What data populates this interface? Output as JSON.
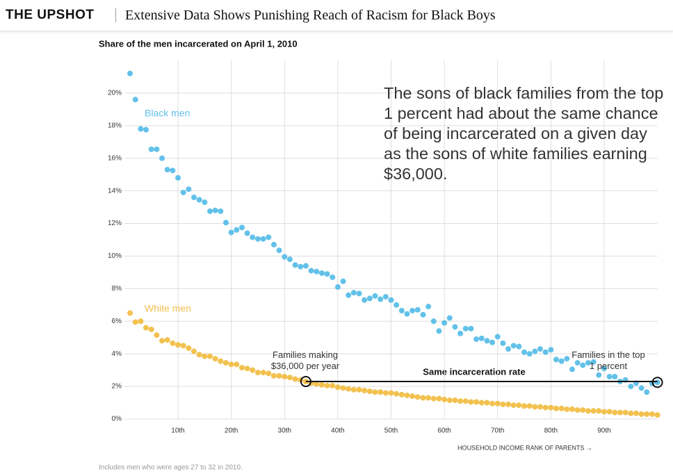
{
  "header": {
    "brand": "THE UPSHOT",
    "headline": "Extensive Data Shows Punishing Reach of Racism for Black Boys"
  },
  "chart_data": {
    "type": "scatter",
    "title": "Share of the men incarcerated on April 1, 2010",
    "x_label": "HOUSEHOLD INCOME RANK OF PARENTS →",
    "note": "Includes men who were ages 27 to 32 in 2010.",
    "annotation": "The sons of black families from the top 1 percent had about the same chance of being incarcerated on a given day as the sons of white families earning $36,000.",
    "callout_left": "Families making $36,000 per year",
    "callout_right": "Families in the top 1 percent",
    "connector_label": "Same incarceration rate",
    "x": [
      1,
      2,
      3,
      4,
      5,
      6,
      7,
      8,
      9,
      10,
      11,
      12,
      13,
      14,
      15,
      16,
      17,
      18,
      19,
      20,
      21,
      22,
      23,
      24,
      25,
      26,
      27,
      28,
      29,
      30,
      31,
      32,
      33,
      34,
      35,
      36,
      37,
      38,
      39,
      40,
      41,
      42,
      43,
      44,
      45,
      46,
      47,
      48,
      49,
      50,
      51,
      52,
      53,
      54,
      55,
      56,
      57,
      58,
      59,
      60,
      61,
      62,
      63,
      64,
      65,
      66,
      67,
      68,
      69,
      70,
      71,
      72,
      73,
      74,
      75,
      76,
      77,
      78,
      79,
      80,
      81,
      82,
      83,
      84,
      85,
      86,
      87,
      88,
      89,
      90,
      91,
      92,
      93,
      94,
      95,
      96,
      97,
      98,
      99,
      100
    ],
    "series": [
      {
        "name": "Black men",
        "color": "#62c1e9",
        "values": [
          21.2,
          19.6,
          17.8,
          17.75,
          16.55,
          16.55,
          16.0,
          15.3,
          15.25,
          14.8,
          13.9,
          14.1,
          13.6,
          13.45,
          13.3,
          12.75,
          12.8,
          12.75,
          12.05,
          11.45,
          11.6,
          11.75,
          11.4,
          11.15,
          11.05,
          11.05,
          11.15,
          10.7,
          10.35,
          9.95,
          9.8,
          9.45,
          9.35,
          9.4,
          9.1,
          9.05,
          8.95,
          8.9,
          8.7,
          8.1,
          8.45,
          7.6,
          7.75,
          7.7,
          7.3,
          7.4,
          7.55,
          7.35,
          7.5,
          7.3,
          7.0,
          6.65,
          6.45,
          6.65,
          6.7,
          6.4,
          6.9,
          6.0,
          5.4,
          5.9,
          6.2,
          5.65,
          5.25,
          5.55,
          5.55,
          4.9,
          4.95,
          4.8,
          4.7,
          5.05,
          4.65,
          4.3,
          4.5,
          4.45,
          4.1,
          4.0,
          4.15,
          4.3,
          4.1,
          4.25,
          3.65,
          3.55,
          3.7,
          3.05,
          3.45,
          3.3,
          3.45,
          3.5,
          2.7,
          3.1,
          2.6,
          2.6,
          2.3,
          2.4,
          2.0,
          2.2,
          1.9,
          1.65,
          2.2,
          2.25
        ]
      },
      {
        "name": "White men",
        "color": "#f2c14e",
        "values": [
          6.5,
          5.95,
          6.0,
          5.6,
          5.5,
          5.15,
          4.8,
          4.85,
          4.65,
          4.55,
          4.5,
          4.35,
          4.15,
          3.95,
          3.85,
          3.85,
          3.7,
          3.55,
          3.45,
          3.35,
          3.35,
          3.15,
          3.1,
          3.0,
          2.85,
          2.85,
          2.8,
          2.65,
          2.65,
          2.6,
          2.55,
          2.45,
          2.4,
          2.3,
          2.2,
          2.15,
          2.1,
          2.05,
          2.05,
          1.95,
          1.9,
          1.85,
          1.8,
          1.8,
          1.75,
          1.7,
          1.65,
          1.65,
          1.6,
          1.6,
          1.55,
          1.5,
          1.45,
          1.4,
          1.35,
          1.3,
          1.3,
          1.25,
          1.25,
          1.2,
          1.15,
          1.15,
          1.1,
          1.1,
          1.05,
          1.05,
          1.0,
          1.0,
          0.95,
          0.95,
          0.9,
          0.9,
          0.85,
          0.85,
          0.8,
          0.8,
          0.75,
          0.75,
          0.7,
          0.7,
          0.65,
          0.65,
          0.6,
          0.6,
          0.55,
          0.55,
          0.5,
          0.5,
          0.5,
          0.45,
          0.45,
          0.4,
          0.4,
          0.4,
          0.35,
          0.35,
          0.3,
          0.3,
          0.3,
          0.25
        ]
      }
    ],
    "xlim": [
      0,
      100
    ],
    "ylim": [
      0,
      22
    ],
    "xticks": [
      {
        "value": 10,
        "label": "10th"
      },
      {
        "value": 20,
        "label": "20th"
      },
      {
        "value": 30,
        "label": "30th"
      },
      {
        "value": 40,
        "label": "40th"
      },
      {
        "value": 50,
        "label": "50th"
      },
      {
        "value": 60,
        "label": "60th"
      },
      {
        "value": 70,
        "label": "70th"
      },
      {
        "value": 80,
        "label": "80th"
      },
      {
        "value": 90,
        "label": "90th"
      }
    ],
    "yticks": [
      {
        "value": 0,
        "label": "0%"
      },
      {
        "value": 2,
        "label": "2%"
      },
      {
        "value": 4,
        "label": "4%"
      },
      {
        "value": 6,
        "label": "6%"
      },
      {
        "value": 8,
        "label": "8%"
      },
      {
        "value": 10,
        "label": "10%"
      },
      {
        "value": 12,
        "label": "12%"
      },
      {
        "value": 14,
        "label": "14%"
      },
      {
        "value": 16,
        "label": "16%"
      },
      {
        "value": 18,
        "label": "18%"
      },
      {
        "value": 20,
        "label": "20%"
      }
    ],
    "grid": true
  }
}
